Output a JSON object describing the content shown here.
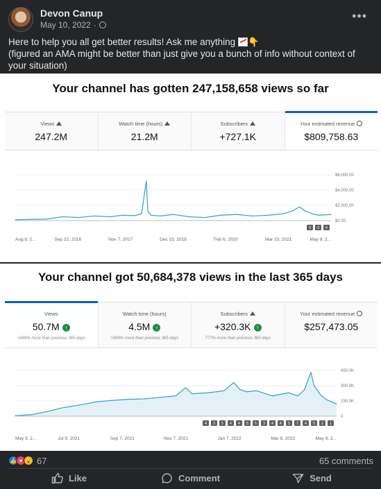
{
  "post": {
    "author": "Devon Canup",
    "date": "May 10, 2022",
    "date_separator": "·",
    "line1": "Here to help you all get better results! Ask me anything",
    "line2": "(figured an AMA might be better than just give you a bunch of info without context of your situation)"
  },
  "icons": {
    "more": "more-options-icon",
    "privacy": "globe-icon",
    "emoji1": "chart-increasing-emoji",
    "emoji2": "backhand-index-pointing-down-emoji"
  },
  "panel1": {
    "title": "Your channel has gotten 247,158,658 views so far",
    "metrics": [
      {
        "label": "Views",
        "value": "247.2M"
      },
      {
        "label": "Watch time (hours)",
        "value": "21.2M"
      },
      {
        "label": "Subscribers",
        "value": "+727.1K"
      },
      {
        "label": "Your estimated revenue",
        "value": "$809,758.63"
      }
    ],
    "selected_metric": "Your estimated revenue"
  },
  "panel2": {
    "title": "Your channel got 50,684,378 views in the last 365 days",
    "metrics": [
      {
        "label": "Views",
        "value": "50.7M",
        "note": ">999% more than previous 365 days"
      },
      {
        "label": "Watch time (hours)",
        "value": "4.5M",
        "note": ">999% more than previous 365 days"
      },
      {
        "label": "Subscribers",
        "value": "+320.3K",
        "note": "777% more than previous 365 days"
      },
      {
        "label": "Your estimated revenue",
        "value": "$257,473.05",
        "note": ""
      }
    ],
    "selected_metric": "Views"
  },
  "chart_data": [
    {
      "type": "line",
      "metric": "Your estimated revenue",
      "x_tick_labels": [
        "Aug 8, 2...",
        "Sep 22, 2016",
        "Nov 7, 2017",
        "Dec 23, 2018",
        "Feb 6, 2020",
        "Mar 23, 2021",
        "May 8, 2..."
      ],
      "y_tick_labels": [
        "$6,000.00",
        "$4,000.00",
        "$2,000.00",
        "$0.00"
      ],
      "ylim": [
        0,
        6000
      ],
      "grid": true,
      "markers": [
        "3",
        "3",
        "4"
      ],
      "x": [
        0,
        0.05,
        0.1,
        0.15,
        0.2,
        0.25,
        0.3,
        0.34,
        0.38,
        0.4,
        0.415,
        0.42,
        0.43,
        0.46,
        0.5,
        0.55,
        0.6,
        0.65,
        0.7,
        0.75,
        0.8,
        0.85,
        0.88,
        0.9,
        0.92,
        0.94,
        0.96,
        1.0
      ],
      "values": [
        100,
        150,
        200,
        500,
        400,
        600,
        500,
        700,
        650,
        900,
        5200,
        1200,
        700,
        600,
        800,
        500,
        400,
        700,
        800,
        600,
        700,
        900,
        1300,
        1800,
        1200,
        900,
        700,
        800
      ]
    },
    {
      "type": "area",
      "metric": "Views",
      "x_tick_labels": [
        "May 9, 2...",
        "Jul 9, 2021",
        "Sep 7, 2021",
        "Nov 7, 2021",
        "Jan 7, 2022",
        "Mar 8, 2022",
        "May 8, 2..."
      ],
      "y_tick_labels": [
        "450.0K",
        "300.0K",
        "150.0K",
        "0"
      ],
      "ylim": [
        0,
        450000
      ],
      "grid": true,
      "markers": [
        "4",
        "3",
        "5",
        "4",
        "4",
        "5",
        "5",
        "3",
        "4",
        "4",
        "5",
        "7",
        "4",
        "5",
        "2",
        "1"
      ],
      "x": [
        0,
        0.05,
        0.1,
        0.15,
        0.2,
        0.25,
        0.3,
        0.35,
        0.4,
        0.45,
        0.5,
        0.53,
        0.55,
        0.6,
        0.65,
        0.68,
        0.7,
        0.72,
        0.75,
        0.8,
        0.85,
        0.88,
        0.9,
        0.92,
        0.93,
        0.95,
        0.97,
        1.0
      ],
      "values": [
        5000,
        15000,
        45000,
        85000,
        110000,
        140000,
        155000,
        165000,
        170000,
        185000,
        200000,
        280000,
        220000,
        230000,
        250000,
        330000,
        260000,
        240000,
        250000,
        200000,
        230000,
        200000,
        260000,
        430000,
        300000,
        210000,
        160000,
        120000
      ]
    }
  ],
  "footer": {
    "reaction_count": "67",
    "comments": "65 comments",
    "like": "Like",
    "comment": "Comment",
    "send": "Send"
  }
}
